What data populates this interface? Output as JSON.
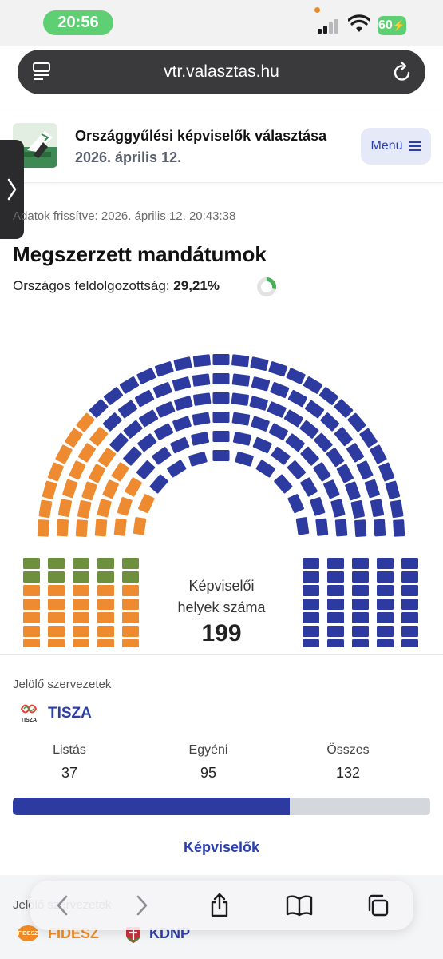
{
  "status_bar": {
    "time": "20:56",
    "battery": "60"
  },
  "browser": {
    "url": "vtr.valasztas.hu"
  },
  "header": {
    "title": "Országgyűlési képviselők választása",
    "date": "2026. április 12.",
    "menu_label": "Menü"
  },
  "updated": "Adatok frissítve: 2026. április 12. 20:43:38",
  "mandates": {
    "title": "Megszerzett mandátumok",
    "progress_label": "Országos feldolgozottság:",
    "progress_value": "29,21%",
    "progress_fraction": 0.2921,
    "seats_label_line1": "Képviselői",
    "seats_label_line2": "helyek száma",
    "seats_total": "199",
    "seat_groups": [
      {
        "party": "KDNP",
        "seats": 10,
        "color": "#6e8f3d"
      },
      {
        "party": "FIDESZ",
        "seats": 57,
        "color": "#ee8a30"
      },
      {
        "party": "TISZA",
        "seats": 132,
        "color": "#2d3aa0"
      }
    ]
  },
  "party_block": {
    "org_label": "Jelölő szervezetek",
    "party_name": "TISZA",
    "logo_text": "TISZA",
    "stats": [
      {
        "key": "Listás",
        "value": "37"
      },
      {
        "key": "Egyéni",
        "value": "95"
      },
      {
        "key": "Összes",
        "value": "132"
      }
    ],
    "bar_fraction": 0.6633,
    "bar_color": "#2d3aa0",
    "link_label": "Képviselők"
  },
  "next_block": {
    "org_label": "Jelölő szervezetek",
    "party1": "FIDESZ",
    "party1_logo_text": "FIDESZ",
    "party2": "KDNP"
  },
  "colors": {
    "tisza": "#2d3aa0",
    "fidesz": "#ee8a30",
    "kdnp": "#6e8f3d",
    "accent": "#2b3faa"
  },
  "icons": {
    "tabs": "tabs-list-icon",
    "reload": "reload-icon",
    "menu": "hamburger-icon",
    "back": "chevron-left-icon",
    "forward": "chevron-right-icon",
    "share": "share-icon",
    "bookmarks": "book-icon",
    "tab_switcher": "tabs-icon"
  }
}
